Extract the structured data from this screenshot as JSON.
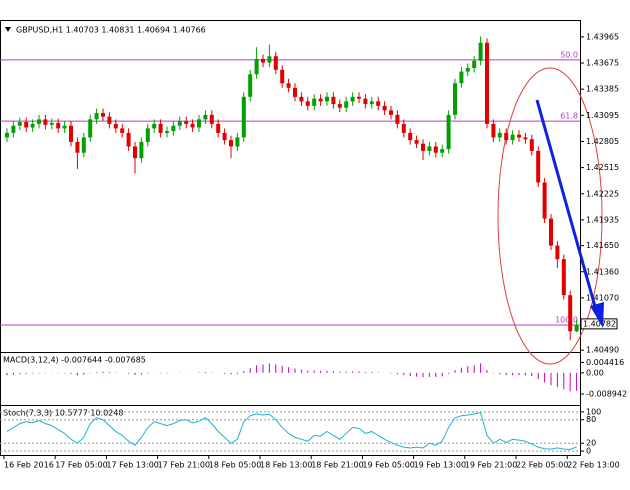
{
  "chart_data": [
    {
      "type": "candlestick",
      "title": "GBPUSD,H1  1.40703 1.40831 1.40694 1.40766",
      "categories": [
        "16 Feb 2016",
        null,
        null,
        null,
        null,
        null,
        null,
        null,
        "17 Feb 05:00",
        null,
        null,
        null,
        null,
        null,
        null,
        null,
        "17 Feb 13:00",
        null,
        null,
        null,
        null,
        null,
        null,
        null,
        "17 Feb 21:00",
        null,
        null,
        null,
        null,
        null,
        null,
        null,
        "18 Feb 05:00",
        null,
        null,
        null,
        null,
        null,
        null,
        null,
        "18 Feb 13:00",
        null,
        null,
        null,
        null,
        null,
        null,
        null,
        "18 Feb 21:00",
        null,
        null,
        null,
        null,
        null,
        null,
        null,
        "19 Feb 05:00",
        null,
        null,
        null,
        null,
        null,
        null,
        null,
        "19 Feb 13:00",
        null,
        null,
        null,
        null,
        null,
        null,
        null,
        "19 Feb 21:00",
        null,
        null,
        null,
        null,
        null,
        null,
        null,
        "22 Feb 05:00",
        null,
        null,
        null,
        null,
        null,
        null,
        null,
        "22 Feb 13:00",
        null
      ],
      "open": [
        1.4285,
        1.429,
        1.4298,
        1.4302,
        1.4296,
        1.43,
        1.4305,
        1.4299,
        1.4301,
        1.4295,
        1.4298,
        1.428,
        1.4268,
        1.4285,
        1.4305,
        1.4312,
        1.4308,
        1.43,
        1.4295,
        1.429,
        1.4275,
        1.4262,
        1.428,
        1.4295,
        1.43,
        1.429,
        1.4292,
        1.4298,
        1.4303,
        1.43,
        1.4296,
        1.4305,
        1.431,
        1.43,
        1.429,
        1.4282,
        1.4275,
        1.4285,
        1.433,
        1.4355,
        1.4372,
        1.4368,
        1.4375,
        1.436,
        1.4345,
        1.434,
        1.433,
        1.4325,
        1.432,
        1.4328,
        1.4325,
        1.433,
        1.4322,
        1.4318,
        1.4325,
        1.433,
        1.4328,
        1.4322,
        1.4325,
        1.432,
        1.4315,
        1.431,
        1.43,
        1.429,
        1.4282,
        1.4278,
        1.427,
        1.4275,
        1.4268,
        1.4272,
        1.431,
        1.4345,
        1.4358,
        1.4362,
        1.437,
        1.439,
        1.43,
        1.4285,
        1.429,
        1.4282,
        1.4288,
        1.4285,
        1.4283,
        1.427,
        1.4235,
        1.4195,
        1.4165,
        1.415,
        1.411,
        1.407
      ],
      "high": [
        1.4295,
        1.4303,
        1.4307,
        1.4307,
        1.4305,
        1.431,
        1.431,
        1.4306,
        1.4306,
        1.4303,
        1.4303,
        1.4285,
        1.429,
        1.431,
        1.4317,
        1.4317,
        1.4313,
        1.4305,
        1.43,
        1.4295,
        1.428,
        1.4285,
        1.43,
        1.4305,
        1.4305,
        1.4297,
        1.4303,
        1.4308,
        1.4308,
        1.4305,
        1.431,
        1.4315,
        1.4315,
        1.4305,
        1.4295,
        1.4287,
        1.429,
        1.4335,
        1.436,
        1.4385,
        1.4377,
        1.4388,
        1.438,
        1.4365,
        1.435,
        1.4345,
        1.4335,
        1.433,
        1.4333,
        1.4333,
        1.4335,
        1.4335,
        1.4327,
        1.433,
        1.4335,
        1.4335,
        1.4333,
        1.433,
        1.433,
        1.4325,
        1.432,
        1.4315,
        1.4305,
        1.4295,
        1.4287,
        1.4283,
        1.428,
        1.428,
        1.4277,
        1.4315,
        1.435,
        1.4363,
        1.4367,
        1.4375,
        1.4397,
        1.4395,
        1.4305,
        1.4295,
        1.4295,
        1.4293,
        1.4293,
        1.429,
        1.4288,
        1.4275,
        1.424,
        1.42,
        1.417,
        1.4155,
        1.4115,
        1.4083
      ],
      "low": [
        1.428,
        1.4285,
        1.4293,
        1.4291,
        1.4291,
        1.4295,
        1.4294,
        1.4294,
        1.429,
        1.429,
        1.4275,
        1.425,
        1.4263,
        1.428,
        1.43,
        1.4303,
        1.4295,
        1.429,
        1.4285,
        1.427,
        1.4245,
        1.4257,
        1.4275,
        1.429,
        1.4285,
        1.4285,
        1.4287,
        1.4293,
        1.4295,
        1.4291,
        1.4291,
        1.43,
        1.4295,
        1.4285,
        1.4277,
        1.4262,
        1.427,
        1.428,
        1.4325,
        1.435,
        1.4363,
        1.4363,
        1.4355,
        1.434,
        1.4335,
        1.4325,
        1.432,
        1.4315,
        1.4315,
        1.432,
        1.432,
        1.4317,
        1.4313,
        1.4313,
        1.432,
        1.4323,
        1.4317,
        1.4317,
        1.4315,
        1.431,
        1.4305,
        1.4295,
        1.4285,
        1.4277,
        1.4273,
        1.426,
        1.4265,
        1.4263,
        1.4263,
        1.4267,
        1.4305,
        1.434,
        1.4353,
        1.4357,
        1.4365,
        1.4295,
        1.428,
        1.428,
        1.4277,
        1.4277,
        1.428,
        1.4278,
        1.4265,
        1.423,
        1.419,
        1.416,
        1.414,
        1.4105,
        1.406,
        1.4069
      ],
      "close": [
        1.429,
        1.4298,
        1.4302,
        1.4296,
        1.43,
        1.4305,
        1.4299,
        1.4301,
        1.4295,
        1.4298,
        1.428,
        1.4268,
        1.4285,
        1.4305,
        1.4312,
        1.4308,
        1.43,
        1.4295,
        1.429,
        1.4275,
        1.4262,
        1.428,
        1.4295,
        1.43,
        1.429,
        1.4292,
        1.4298,
        1.4303,
        1.43,
        1.4296,
        1.4305,
        1.431,
        1.43,
        1.429,
        1.4282,
        1.4275,
        1.4285,
        1.433,
        1.4355,
        1.4372,
        1.4368,
        1.4375,
        1.436,
        1.4345,
        1.434,
        1.433,
        1.4325,
        1.432,
        1.4328,
        1.4325,
        1.433,
        1.4322,
        1.4318,
        1.4325,
        1.433,
        1.4328,
        1.4322,
        1.4325,
        1.432,
        1.4315,
        1.431,
        1.43,
        1.429,
        1.4282,
        1.4278,
        1.427,
        1.4275,
        1.4268,
        1.4272,
        1.431,
        1.4345,
        1.4358,
        1.4362,
        1.437,
        1.439,
        1.43,
        1.4285,
        1.429,
        1.4282,
        1.4288,
        1.4285,
        1.4283,
        1.427,
        1.4235,
        1.4195,
        1.4165,
        1.415,
        1.411,
        1.407,
        1.4077
      ],
      "up_color": "#00a000",
      "down_color": "#e00000",
      "ylim": [
        1.4047,
        1.4413
      ],
      "yticks": [
        1.43965,
        1.43675,
        1.43385,
        1.43095,
        1.42805,
        1.42515,
        1.42225,
        1.41935,
        {
          "value": 1.4165,
          "label": "1.41650"
        },
        {
          "value": 1.4136,
          "label": "1.41360"
        },
        {
          "value": 1.4107,
          "label": "1.41070"
        },
        {
          "value": 1.4049,
          "label": "1.40490"
        }
      ],
      "current_price": 1.40782,
      "fibo_levels": [
        {
          "label": "50.0",
          "price": 1.4371
        },
        {
          "label": "61.8",
          "price": 1.4303
        },
        {
          "label": "100.0",
          "price": 1.4077
        }
      ],
      "fibo_color": "#b040c0"
    },
    {
      "type": "bar",
      "title": "MACD(3,12,4) -0.007644 -0.007685",
      "values": [
        -0.001,
        -0.0008,
        -0.0005,
        -0.0004,
        -0.0003,
        -0.0002,
        -0.0002,
        -0.0001,
        -0.0002,
        -0.0002,
        -0.0005,
        -0.001,
        -0.0008,
        -0.0002,
        0.0003,
        0.0005,
        0.0004,
        0.0002,
        0.0,
        -0.0004,
        -0.0009,
        -0.0007,
        -0.0003,
        -0.0001,
        -0.0002,
        -0.0002,
        -0.0001,
        0.0001,
        0.0001,
        0.0,
        0.0002,
        0.0004,
        0.0002,
        -0.0001,
        -0.0004,
        -0.0007,
        -0.0005,
        0.0008,
        0.002,
        0.0032,
        0.0036,
        0.004,
        0.0036,
        0.003,
        0.0024,
        0.0018,
        0.0014,
        0.001,
        0.001,
        0.0009,
        0.0009,
        0.0007,
        0.0005,
        0.0005,
        0.0006,
        0.0006,
        0.0004,
        0.0004,
        0.0002,
        0.0,
        -0.0002,
        -0.0006,
        -0.001,
        -0.0014,
        -0.0016,
        -0.0018,
        -0.0017,
        -0.0017,
        -0.0015,
        -0.0004,
        0.0012,
        0.0022,
        0.0028,
        0.0032,
        0.004,
        0.0012,
        -0.0002,
        -0.0006,
        -0.001,
        -0.001,
        -0.001,
        -0.001,
        -0.0014,
        -0.0026,
        -0.004,
        -0.0052,
        -0.006,
        -0.007,
        -0.0078,
        -0.0076
      ],
      "color": "#c000c0",
      "ylim": [
        -0.0136,
        0.0084
      ],
      "yticks": [
        0.004416,
        {
          "value": 0,
          "label": "0.00"
        },
        -0.008942
      ]
    },
    {
      "type": "line",
      "title": "Stoch(7,3,3) 10.5777 10.0248",
      "series": [
        {
          "color": "#20b0d8",
          "values": [
            50,
            60,
            70,
            75,
            72,
            78,
            70,
            65,
            55,
            45,
            30,
            20,
            35,
            70,
            85,
            80,
            65,
            50,
            40,
            25,
            15,
            35,
            60,
            75,
            70,
            65,
            70,
            78,
            80,
            72,
            76,
            85,
            70,
            50,
            35,
            20,
            30,
            75,
            90,
            95,
            92,
            94,
            80,
            60,
            45,
            35,
            30,
            25,
            40,
            38,
            50,
            40,
            30,
            45,
            60,
            58,
            45,
            50,
            40,
            30,
            22,
            15,
            10,
            8,
            10,
            8,
            20,
            15,
            25,
            60,
            85,
            90,
            92,
            95,
            98,
            40,
            20,
            30,
            22,
            30,
            28,
            25,
            18,
            10,
            6,
            5,
            8,
            5,
            4,
            11
          ]
        }
      ],
      "ylim": [
        -10,
        115
      ],
      "yticks": [
        100,
        80,
        20,
        0
      ]
    }
  ]
}
